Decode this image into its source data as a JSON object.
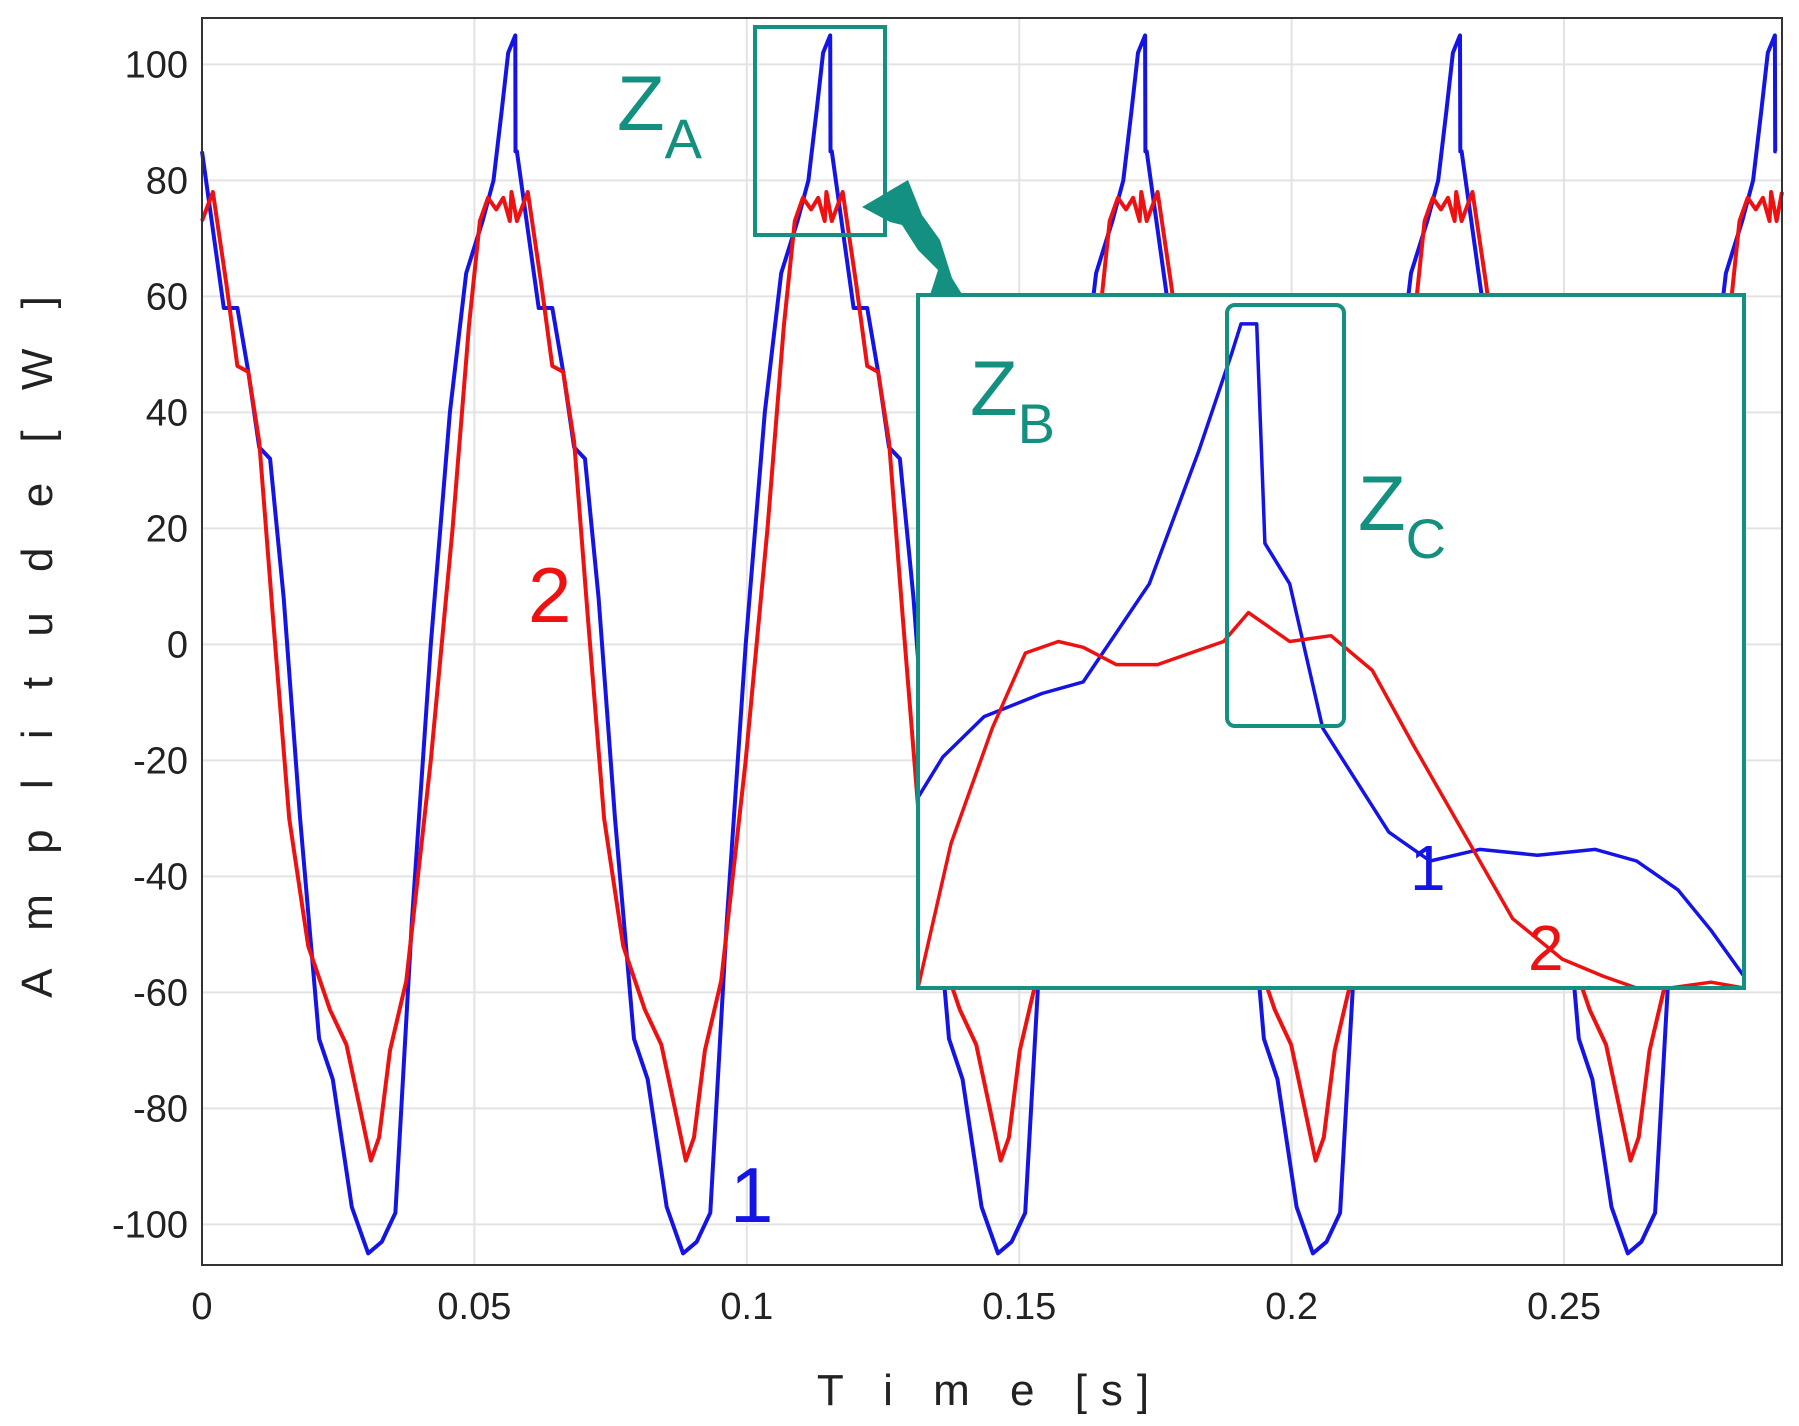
{
  "chart_data": {
    "type": "line",
    "title": "",
    "xlabel": "T i m e [s]",
    "ylabel": "A m p l i t u d e [ W ]",
    "xlim": [
      0,
      0.29
    ],
    "ylim": [
      -107,
      108
    ],
    "xticks": [
      "0",
      "0.05",
      "0.1",
      "0.15",
      "0.2",
      "0.25"
    ],
    "yticks": [
      "100",
      "80",
      "60",
      "40",
      "20",
      "0",
      "-20",
      "-40",
      "-60",
      "-80",
      "-100"
    ],
    "grid": true,
    "period": 0.0578,
    "series": [
      {
        "name": "1",
        "color": "#1414e6",
        "period_values": {
          "t": [
            0.0,
            0.004,
            0.0065,
            0.0085,
            0.0105,
            0.0125,
            0.015,
            0.018,
            0.0215,
            0.024,
            0.0275,
            0.0305,
            0.033,
            0.0355,
            0.0385,
            0.042,
            0.0455,
            0.0485,
            0.0515,
            0.0535,
            0.055,
            0.0562,
            0.0575,
            0.05755,
            0.0578
          ],
          "y": [
            85,
            58,
            58,
            47,
            34,
            32,
            8,
            -30,
            -68,
            -75,
            -97,
            -105,
            -103,
            -98,
            -48,
            0,
            40,
            64,
            73,
            80,
            92,
            102,
            105,
            85,
            85
          ]
        }
      },
      {
        "name": "2",
        "color": "#ee1111",
        "period_values": {
          "t": [
            0.0,
            0.002,
            0.0045,
            0.0065,
            0.0085,
            0.0105,
            0.013,
            0.016,
            0.0195,
            0.0235,
            0.0265,
            0.029,
            0.031,
            0.0325,
            0.0345,
            0.0375,
            0.042,
            0.046,
            0.049,
            0.051,
            0.0525,
            0.054,
            0.0553,
            0.0565,
            0.0568,
            0.0578
          ],
          "y": [
            73,
            78,
            62,
            48,
            47,
            35,
            5,
            -30,
            -52,
            -63,
            -69,
            -80,
            -89,
            -85,
            -70,
            -58,
            -20,
            20,
            55,
            73,
            77,
            75,
            77,
            73,
            78,
            73
          ]
        }
      }
    ],
    "inset": {
      "border_color": "#149080",
      "ylim": [
        -60,
        60
      ],
      "series": [
        {
          "name": "1",
          "color": "#1414e6",
          "x": [
            0.0,
            0.03,
            0.08,
            0.15,
            0.2,
            0.28,
            0.34,
            0.38,
            0.391,
            0.4,
            0.41,
            0.42,
            0.45,
            0.49,
            0.57,
            0.62,
            0.68,
            0.75,
            0.82,
            0.87,
            0.92,
            0.96,
            1.0
          ],
          "y": [
            -27,
            -20,
            -13,
            -9,
            -7,
            10,
            33,
            50,
            55,
            55,
            55,
            17,
            10,
            -15,
            -33,
            -38,
            -36,
            -37,
            -36,
            -38,
            -43,
            -50,
            -58
          ]
        },
        {
          "name": "2",
          "color": "#ee1111",
          "x": [
            0.0,
            0.04,
            0.09,
            0.13,
            0.17,
            0.2,
            0.24,
            0.29,
            0.33,
            0.37,
            0.4,
            0.45,
            0.5,
            0.55,
            0.6,
            0.66,
            0.72,
            0.78,
            0.83,
            0.87,
            0.91,
            0.96,
            1.0
          ],
          "y": [
            -60,
            -35,
            -15,
            -2,
            0,
            -1,
            -4,
            -4,
            -2,
            0,
            5,
            0,
            1,
            -5,
            -18,
            -33,
            -48,
            -55,
            -58,
            -60,
            -60,
            -59,
            -60
          ]
        }
      ]
    },
    "annotations": {
      "z_a": {
        "main": "Z",
        "sub": "A"
      },
      "z_b": {
        "main": "Z",
        "sub": "B"
      },
      "z_c": {
        "main": "Z",
        "sub": "C"
      },
      "main_label_1": "1",
      "main_label_2": "2",
      "inset_label_1": "1",
      "inset_label_2": "2"
    },
    "annotation_color": "#149080"
  }
}
